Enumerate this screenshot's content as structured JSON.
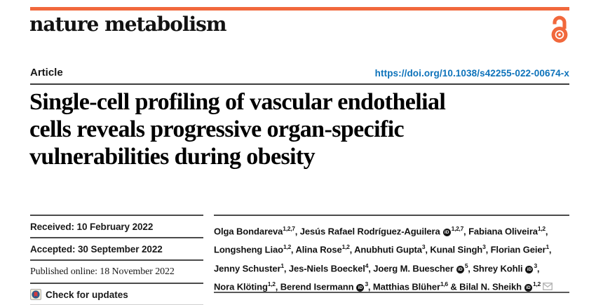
{
  "masthead": {
    "brand": "nature metabolism",
    "accent_color": "#f1683c"
  },
  "article_bar": {
    "label": "Article",
    "doi": "https://doi.org/10.1038/s42255-022-00674-x",
    "doi_color": "#0c72ba"
  },
  "title": {
    "full": "Single-cell profiling of vascular endothelial cells reveals progressive organ-specific vulnerabilities during obesity",
    "lines": [
      "Single-cell profiling of vascular endothelial",
      "cells reveals progressive organ-specific",
      "vulnerabilities during obesity"
    ]
  },
  "meta": {
    "received": "Received: 10 February 2022",
    "accepted": "Accepted: 30 September 2022",
    "published": "Published online: 18 November 2022",
    "check_updates": "Check for updates"
  },
  "icons": {
    "open_access": "open-access-lock-icon",
    "orcid": "orcid-id-icon",
    "orcid_glyph": "iD",
    "email": "envelope-icon",
    "check": "crossmark-circle-icon"
  },
  "authors": {
    "lines": [
      [
        {
          "name": "Olga Bondareva",
          "sup": "1,2,7",
          "orcid": false,
          "sep": ", "
        },
        {
          "name": "Jesús Rafael Rodríguez-Aguilera",
          "sup": "1,2,7",
          "orcid": true,
          "sep": ", "
        },
        {
          "name": "Fabiana Oliveira",
          "sup": "1,2",
          "orcid": false,
          "sep": ","
        }
      ],
      [
        {
          "name": "Longsheng Liao",
          "sup": "1,2",
          "orcid": false,
          "sep": ", "
        },
        {
          "name": "Alina Rose",
          "sup": "1,2",
          "orcid": false,
          "sep": ", "
        },
        {
          "name": "Anubhuti Gupta",
          "sup": "3",
          "orcid": false,
          "sep": ", "
        },
        {
          "name": "Kunal Singh",
          "sup": "3",
          "orcid": false,
          "sep": ", "
        },
        {
          "name": "Florian Geier",
          "sup": "1",
          "orcid": false,
          "sep": ","
        }
      ],
      [
        {
          "name": "Jenny Schuster",
          "sup": "1",
          "orcid": false,
          "sep": ", "
        },
        {
          "name": "Jes-Niels Boeckel",
          "sup": "4",
          "orcid": false,
          "sep": ", "
        },
        {
          "name": "Joerg M. Buescher",
          "sup": "5",
          "orcid": true,
          "sep": ", "
        },
        {
          "name": "Shrey Kohli",
          "sup": "3",
          "orcid": true,
          "sep": ","
        }
      ],
      [
        {
          "name": "Nora Klöting",
          "sup": "1,2",
          "orcid": false,
          "sep": ", "
        },
        {
          "name": "Berend Isermann",
          "sup": "3",
          "orcid": true,
          "sep": ", "
        },
        {
          "name": "Matthias Blüher",
          "sup": "1,6",
          "orcid": false,
          "sep": " & "
        },
        {
          "name": "Bilal N. Sheikh",
          "sup": "1,2",
          "orcid": true,
          "email": true,
          "sep": ""
        }
      ]
    ]
  }
}
